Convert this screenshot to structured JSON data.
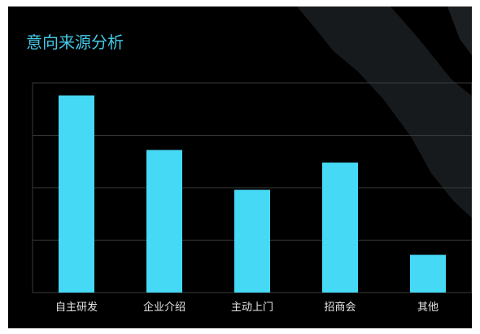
{
  "title": "意向来源分析",
  "colors": {
    "bar": "#45d9f5",
    "title": "#44c9e8",
    "grid": "#3a3a3a",
    "label": "#e6e6e6",
    "background": "#000000"
  },
  "chart_data": {
    "type": "bar",
    "categories": [
      "自主研发",
      "企业介绍",
      "主动上门",
      "招商会",
      "其他"
    ],
    "values": [
      94,
      68,
      49,
      62,
      18
    ],
    "ylim": [
      0,
      100
    ],
    "grid": true,
    "xlabel": "",
    "ylabel": "",
    "title": "意向来源分析"
  }
}
